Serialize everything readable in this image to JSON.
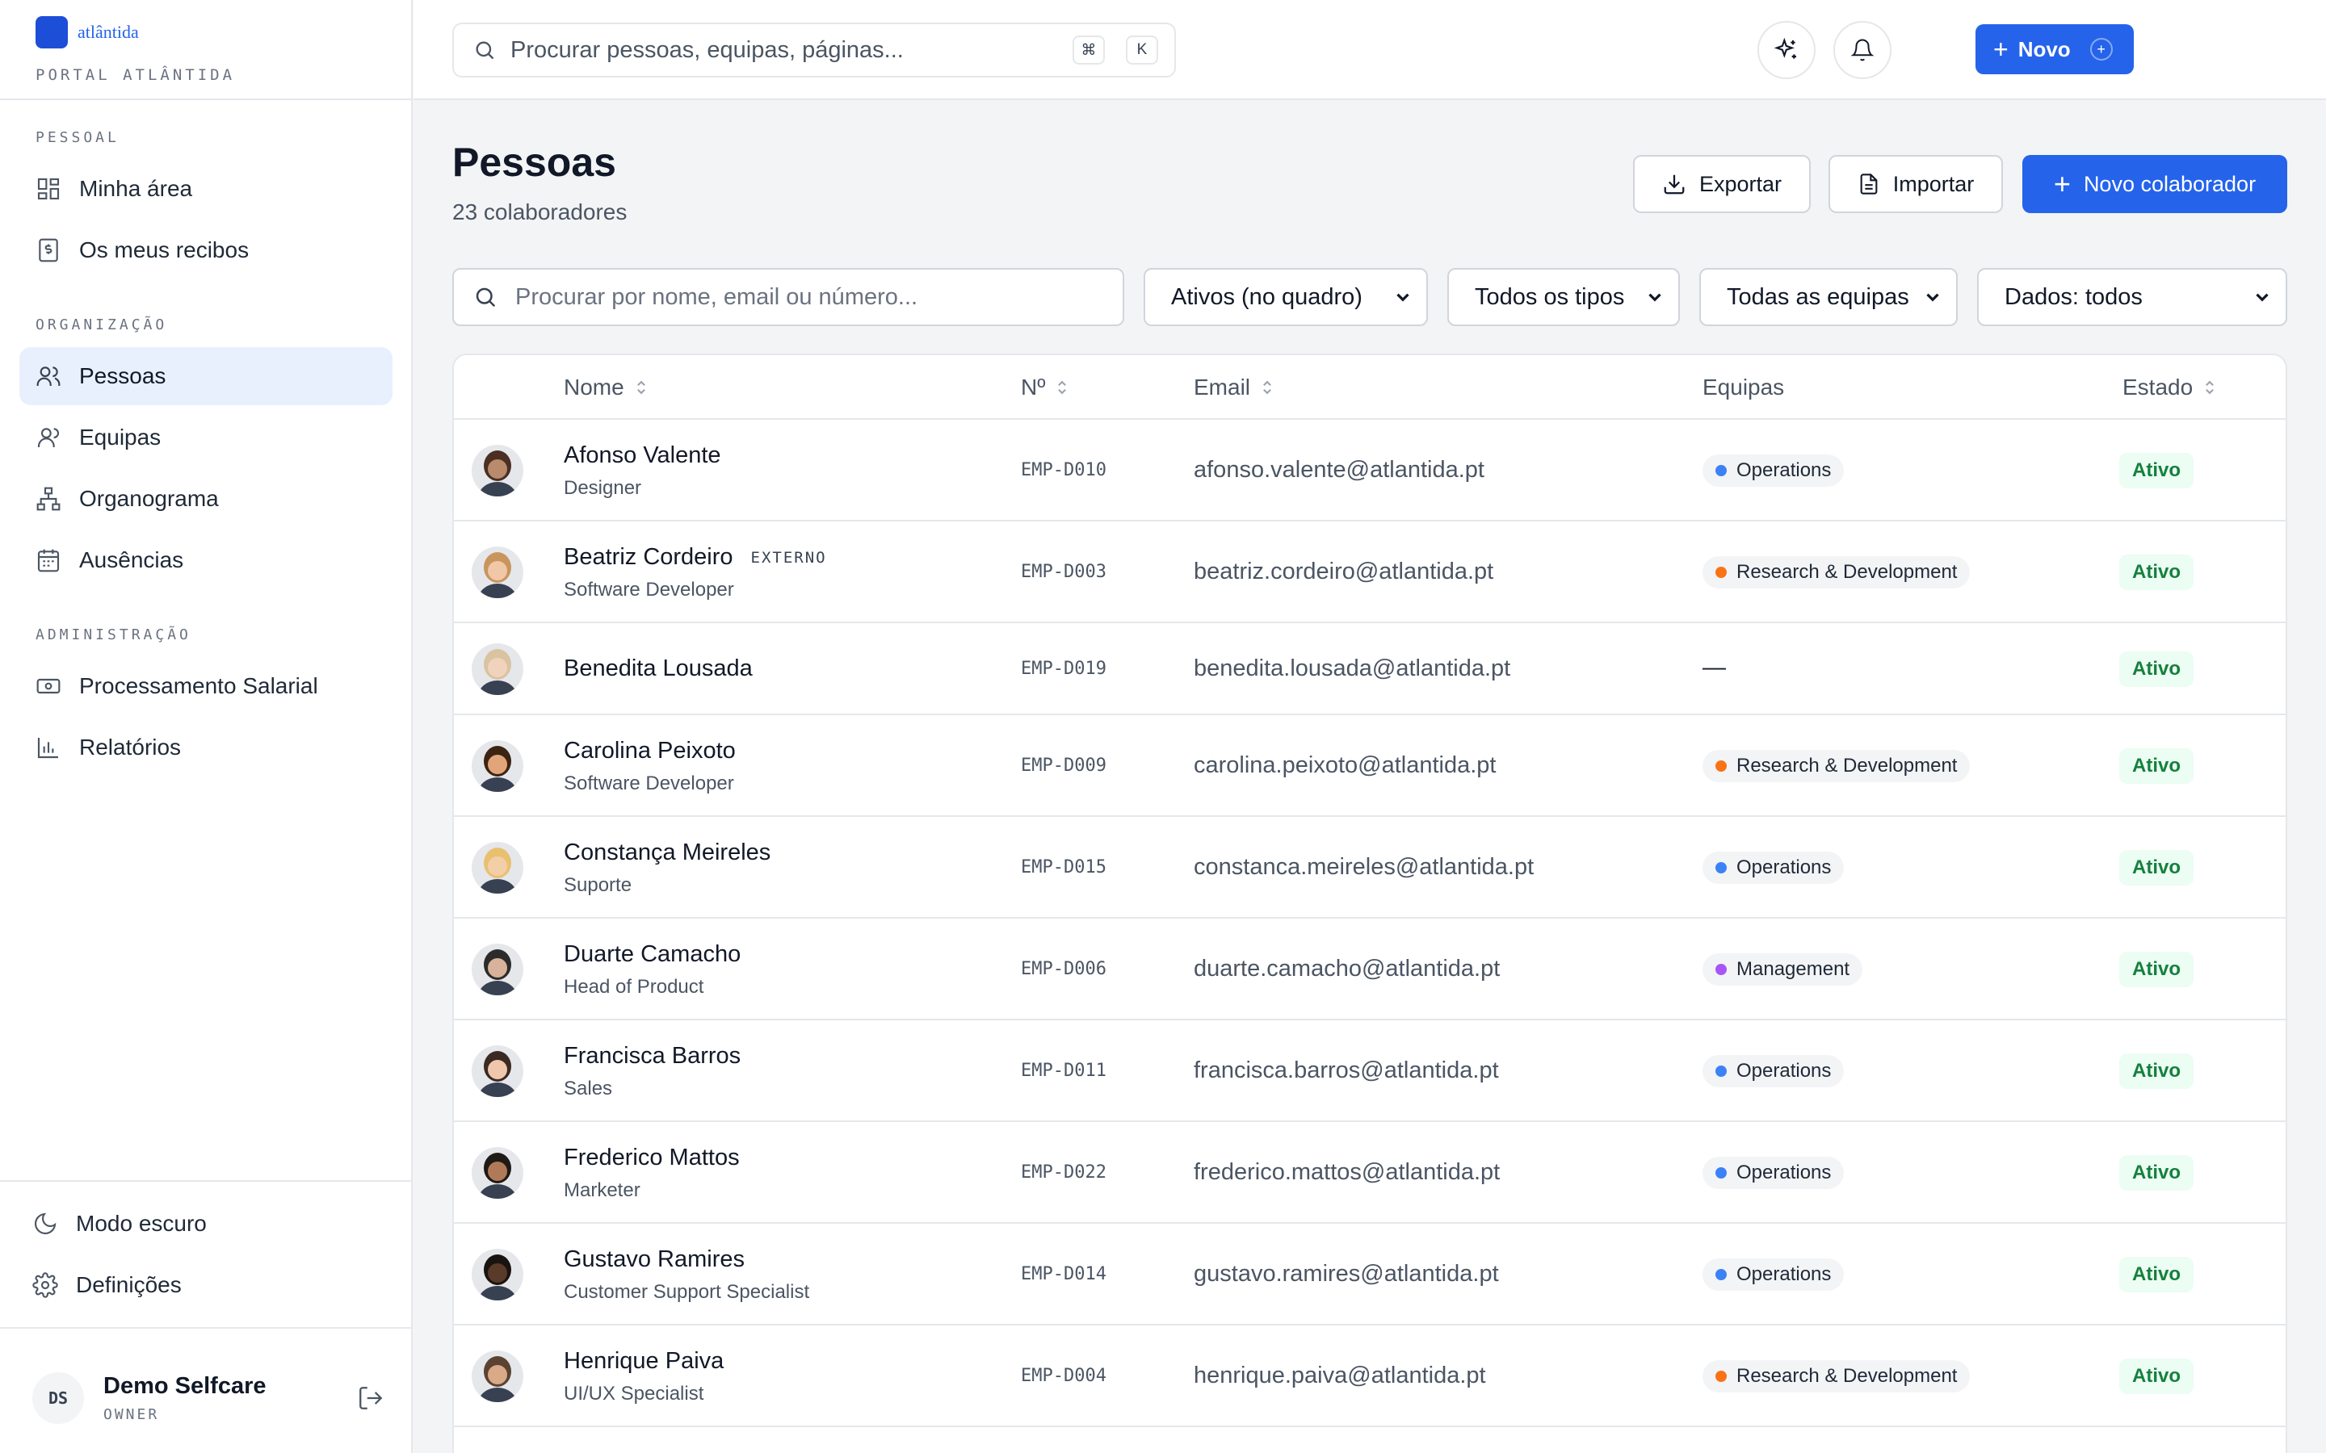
{
  "brand": {
    "name": "atlântida",
    "portal": "PORTAL ATLÂNTIDA"
  },
  "sidebar": {
    "sections": [
      {
        "title": "PESSOAL",
        "items": [
          {
            "label": "Minha área",
            "icon": "grid-icon"
          },
          {
            "label": "Os meus recibos",
            "icon": "receipt-icon"
          }
        ]
      },
      {
        "title": "ORGANIZAÇÃO",
        "items": [
          {
            "label": "Pessoas",
            "icon": "users-icon",
            "active": true
          },
          {
            "label": "Equipas",
            "icon": "team-icon"
          },
          {
            "label": "Organograma",
            "icon": "org-chart-icon"
          },
          {
            "label": "Ausências",
            "icon": "calendar-icon"
          }
        ]
      },
      {
        "title": "ADMINISTRAÇÃO",
        "items": [
          {
            "label": "Processamento Salarial",
            "icon": "payroll-icon"
          },
          {
            "label": "Relatórios",
            "icon": "bar-chart-icon"
          }
        ]
      }
    ],
    "bottom": {
      "dark_mode": "Modo escuro",
      "settings": "Definições"
    },
    "user": {
      "initials": "DS",
      "name": "Demo Selfcare",
      "role": "OWNER"
    }
  },
  "topbar": {
    "search_placeholder": "Procurar pessoas, equipas, páginas...",
    "kbd_cmd": "⌘",
    "kbd_k": "K",
    "new_label": "Novo",
    "new_badge": "+"
  },
  "page": {
    "title": "Pessoas",
    "subtitle": "23 colaboradores",
    "export_label": "Exportar",
    "import_label": "Importar",
    "new_collaborator_label": "Novo colaborador"
  },
  "filters": {
    "search_placeholder": "Procurar por nome, email ou número...",
    "status": "Ativos (no quadro)",
    "type": "Todos os tipos",
    "team": "Todas as equipas",
    "data": "Dados: todos"
  },
  "table": {
    "columns": {
      "name": "Nome",
      "number": "Nº",
      "email": "Email",
      "teams": "Equipas",
      "status": "Estado"
    },
    "rows": [
      {
        "name": "Afonso Valente",
        "role": "Designer",
        "badge": "",
        "id": "EMP-D010",
        "email": "afonso.valente@atlantida.pt",
        "team": "Operations",
        "team_color": "#3b82f6",
        "status": "Ativo",
        "skin": "#b98a6b",
        "hair": "#4a2f22"
      },
      {
        "name": "Beatriz Cordeiro",
        "role": "Software Developer",
        "badge": "EXTERNO",
        "id": "EMP-D003",
        "email": "beatriz.cordeiro@atlantida.pt",
        "team": "Research & Development",
        "team_color": "#f97316",
        "status": "Ativo",
        "skin": "#f0c8a8",
        "hair": "#c8955c"
      },
      {
        "name": "Benedita Lousada",
        "role": "",
        "badge": "",
        "id": "EMP-D019",
        "email": "benedita.lousada@atlantida.pt",
        "team": "",
        "team_color": "",
        "status": "Ativo",
        "skin": "#f1d3bd",
        "hair": "#d9c3a0"
      },
      {
        "name": "Carolina Peixoto",
        "role": "Software Developer",
        "badge": "",
        "id": "EMP-D009",
        "email": "carolina.peixoto@atlantida.pt",
        "team": "Research & Development",
        "team_color": "#f97316",
        "status": "Ativo",
        "skin": "#e2a57a",
        "hair": "#3b2412"
      },
      {
        "name": "Constança Meireles",
        "role": "Suporte",
        "badge": "",
        "id": "EMP-D015",
        "email": "constanca.meireles@atlantida.pt",
        "team": "Operations",
        "team_color": "#3b82f6",
        "status": "Ativo",
        "skin": "#f3cfa8",
        "hair": "#e8c070"
      },
      {
        "name": "Duarte Camacho",
        "role": "Head of Product",
        "badge": "",
        "id": "EMP-D006",
        "email": "duarte.camacho@atlantida.pt",
        "team": "Management",
        "team_color": "#a855f7",
        "status": "Ativo",
        "skin": "#d8b29a",
        "hair": "#2b2b2b"
      },
      {
        "name": "Francisca Barros",
        "role": "Sales",
        "badge": "",
        "id": "EMP-D011",
        "email": "francisca.barros@atlantida.pt",
        "team": "Operations",
        "team_color": "#3b82f6",
        "status": "Ativo",
        "skin": "#f0c6ad",
        "hair": "#3a2a22"
      },
      {
        "name": "Frederico Mattos",
        "role": "Marketer",
        "badge": "",
        "id": "EMP-D022",
        "email": "frederico.mattos@atlantida.pt",
        "team": "Operations",
        "team_color": "#3b82f6",
        "status": "Ativo",
        "skin": "#b07a58",
        "hair": "#1f1a16"
      },
      {
        "name": "Gustavo Ramires",
        "role": "Customer Support Specialist",
        "badge": "",
        "id": "EMP-D014",
        "email": "gustavo.ramires@atlantida.pt",
        "team": "Operations",
        "team_color": "#3b82f6",
        "status": "Ativo",
        "skin": "#5a3a28",
        "hair": "#1a1410"
      },
      {
        "name": "Henrique Paiva",
        "role": "UI/UX Specialist",
        "badge": "",
        "id": "EMP-D004",
        "email": "henrique.paiva@atlantida.pt",
        "team": "Research & Development",
        "team_color": "#f97316",
        "status": "Ativo",
        "skin": "#d9a988",
        "hair": "#5a4330"
      }
    ]
  },
  "colors": {
    "accent": "#2563eb",
    "active_nav_bg": "#e8f0fe",
    "status_green": "#15803d"
  }
}
